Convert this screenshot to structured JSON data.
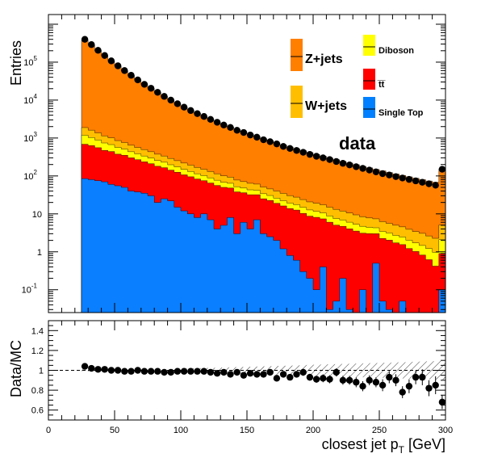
{
  "chart_data": [
    {
      "type": "stacked-histogram",
      "name": "main",
      "ylabel": "Entries",
      "yscale": "log",
      "ylim": [
        0.025,
        1800000
      ],
      "xlim": [
        0,
        300
      ],
      "bin_width": 5,
      "x_start": 25,
      "x_end": 300,
      "y_tick_labels": [
        {
          "label": "10",
          "exp": "-1",
          "value": 0.1
        },
        {
          "label": "1",
          "exp": "",
          "value": 1
        },
        {
          "label": "10",
          "exp": "",
          "value": 10
        },
        {
          "label": "10",
          "exp": "2",
          "value": 100
        },
        {
          "label": "10",
          "exp": "3",
          "value": 1000
        },
        {
          "label": "10",
          "exp": "4",
          "value": 10000
        },
        {
          "label": "10",
          "exp": "5",
          "value": 100000
        }
      ],
      "legend": [
        {
          "name": "Z+jets",
          "color": "#ff7f00",
          "size": "big"
        },
        {
          "name": "W+jets",
          "color": "#ffbf00",
          "size": "big"
        },
        {
          "name": "data",
          "color": "#000000",
          "size": "big"
        },
        {
          "name": "Diboson",
          "color": "#ffff00",
          "size": "small"
        },
        {
          "name": "t̅t̅",
          "color": "#ff0000",
          "size": "small"
        },
        {
          "name": "Single Top",
          "color": "#0080ff",
          "size": "small"
        }
      ],
      "series": [
        {
          "name": "Single Top",
          "color": "#0a7fff",
          "values": [
            85,
            80,
            75,
            70,
            60,
            55,
            50,
            40,
            38,
            35,
            30,
            20,
            25,
            22,
            15,
            12,
            10,
            8,
            10,
            7,
            4,
            5,
            8,
            3,
            6,
            4,
            7,
            3,
            2.5,
            2,
            1.2,
            0.8,
            0.6,
            0.3,
            0.2,
            0.1,
            0.4,
            0.03,
            0.05,
            0.2,
            0.03,
            0.02,
            0.1,
            0.02,
            0.5,
            0.05,
            0.03,
            0.02,
            0.05,
            0.02,
            0.02,
            0.02,
            0.02,
            0.02,
            0.1
          ]
        },
        {
          "name": "ttbar",
          "color": "#ff0000",
          "values": [
            600,
            550,
            480,
            400,
            380,
            320,
            300,
            260,
            230,
            200,
            180,
            160,
            140,
            120,
            110,
            95,
            85,
            75,
            65,
            58,
            52,
            45,
            40,
            35,
            30,
            28,
            25,
            22,
            20,
            17,
            15,
            13,
            12,
            10,
            8.5,
            8,
            7,
            6,
            5,
            4.5,
            4,
            3.5,
            3,
            3,
            2.5,
            2.2,
            2,
            1.7,
            1.5,
            1.2,
            1,
            0.8,
            0.6,
            0.4,
            0.8
          ]
        },
        {
          "name": "Diboson",
          "color": "#ffff00",
          "values": [
            500,
            400,
            330,
            270,
            230,
            190,
            160,
            135,
            115,
            100,
            85,
            75,
            65,
            55,
            48,
            42,
            36,
            31,
            27,
            24,
            21,
            18,
            16,
            14,
            12,
            11,
            10,
            9,
            8,
            7,
            6,
            5.5,
            5,
            4.5,
            4,
            3.6,
            3.2,
            2.8,
            2.5,
            2.2,
            2,
            1.8,
            1.6,
            1.4,
            1.3,
            1.2,
            1.1,
            1,
            0.9,
            0.8,
            0.7,
            0.65,
            0.6,
            0.55,
            1.2
          ]
        },
        {
          "name": "W+jets",
          "color": "#ffbf00",
          "values": [
            700,
            580,
            480,
            400,
            340,
            290,
            250,
            210,
            180,
            160,
            140,
            120,
            105,
            92,
            80,
            70,
            62,
            54,
            48,
            42,
            37,
            33,
            29,
            26,
            23,
            21,
            19,
            17,
            15,
            14,
            12.5,
            11,
            10,
            9,
            8,
            7.4,
            6.8,
            6.2,
            5.6,
            5,
            4.5,
            4.1,
            3.7,
            3.4,
            3.1,
            2.8,
            2.5,
            2.3,
            2.1,
            1.9,
            1.7,
            1.6,
            1.4,
            1.3,
            3
          ]
        },
        {
          "name": "Z+jets",
          "color": "#ff7f00",
          "values": [
            380000,
            280000,
            200000,
            145000,
            105000,
            78000,
            58000,
            44000,
            33000,
            25500,
            20000,
            15500,
            12200,
            9700,
            7800,
            6300,
            5200,
            4300,
            3600,
            3000,
            2550,
            2180,
            1870,
            1600,
            1380,
            1200,
            1040,
            910,
            800,
            700,
            620,
            550,
            490,
            440,
            392,
            350,
            315,
            283,
            255,
            230,
            208,
            189,
            171,
            156,
            142,
            130,
            118,
            108,
            99,
            91,
            84,
            77,
            71,
            66,
            150
          ]
        }
      ],
      "data_points": [
        400000,
        290000,
        205000,
        150000,
        108000,
        80000,
        60000,
        45000,
        34000,
        26000,
        20500,
        16000,
        12500,
        10000,
        8000,
        6500,
        5300,
        4400,
        3700,
        3100,
        2600,
        2200,
        1900,
        1600,
        1400,
        1200,
        1050,
        900,
        800,
        700,
        600,
        530,
        470,
        420,
        370,
        330,
        300,
        270,
        240,
        215,
        195,
        175,
        158,
        143,
        128,
        115,
        106,
        96,
        88,
        81,
        74,
        68,
        62,
        57,
        150
      ]
    },
    {
      "type": "scatter",
      "name": "ratio",
      "ylabel": "Data/MC",
      "xlabel": "closest jet p",
      "xlabel_sub": "T",
      "xlabel_unit": " [GeV]",
      "xlim": [
        0,
        300
      ],
      "ylim": [
        0.5,
        1.5
      ],
      "x_ticks": [
        {
          "label": "0",
          "value": 0
        },
        {
          "label": "50",
          "value": 50
        },
        {
          "label": "100",
          "value": 100
        },
        {
          "label": "150",
          "value": 150
        },
        {
          "label": "200",
          "value": 200
        },
        {
          "label": "250",
          "value": 250
        },
        {
          "label": "300",
          "value": 300
        }
      ],
      "y_ticks": [
        {
          "label": "0.6",
          "value": 0.6
        },
        {
          "label": "0.8",
          "value": 0.8
        },
        {
          "label": "1",
          "value": 1.0
        },
        {
          "label": "1.2",
          "value": 1.2
        },
        {
          "label": "1.4",
          "value": 1.4
        }
      ],
      "values": [
        1.04,
        1.02,
        1.01,
        1.01,
        1.0,
        1.0,
        0.99,
        0.99,
        1.0,
        0.99,
        0.99,
        0.99,
        0.98,
        0.98,
        0.99,
        0.99,
        0.99,
        0.99,
        0.99,
        0.98,
        0.97,
        0.98,
        0.96,
        0.98,
        0.95,
        0.97,
        0.96,
        0.96,
        0.98,
        0.92,
        0.96,
        0.93,
        0.96,
        0.98,
        0.93,
        0.91,
        0.92,
        0.91,
        0.98,
        0.9,
        0.9,
        0.88,
        0.84,
        0.9,
        0.88,
        0.85,
        0.93,
        0.9,
        0.78,
        0.84,
        0.93,
        0.93,
        0.82,
        0.85,
        0.68
      ],
      "errors": [
        0.01,
        0.01,
        0.01,
        0.01,
        0.01,
        0.01,
        0.01,
        0.01,
        0.01,
        0.01,
        0.01,
        0.01,
        0.01,
        0.01,
        0.01,
        0.01,
        0.01,
        0.01,
        0.015,
        0.015,
        0.02,
        0.02,
        0.02,
        0.02,
        0.02,
        0.02,
        0.02,
        0.025,
        0.025,
        0.03,
        0.03,
        0.03,
        0.03,
        0.035,
        0.035,
        0.035,
        0.04,
        0.04,
        0.04,
        0.045,
        0.045,
        0.05,
        0.05,
        0.05,
        0.05,
        0.06,
        0.06,
        0.06,
        0.06,
        0.07,
        0.07,
        0.08,
        0.08,
        0.09,
        0.07
      ],
      "mc_uncertainty": [
        0.01,
        0.01,
        0.01,
        0.01,
        0.01,
        0.01,
        0.01,
        0.01,
        0.01,
        0.01,
        0.01,
        0.01,
        0.012,
        0.014,
        0.016,
        0.018,
        0.02,
        0.02,
        0.022,
        0.024,
        0.026,
        0.028,
        0.03,
        0.032,
        0.034,
        0.036,
        0.038,
        0.04,
        0.042,
        0.044,
        0.046,
        0.048,
        0.05,
        0.052,
        0.054,
        0.056,
        0.058,
        0.06,
        0.062,
        0.064,
        0.066,
        0.068,
        0.07,
        0.072,
        0.074,
        0.076,
        0.078,
        0.08,
        0.082,
        0.084,
        0.086,
        0.088,
        0.09,
        0.092,
        0.094
      ]
    }
  ]
}
